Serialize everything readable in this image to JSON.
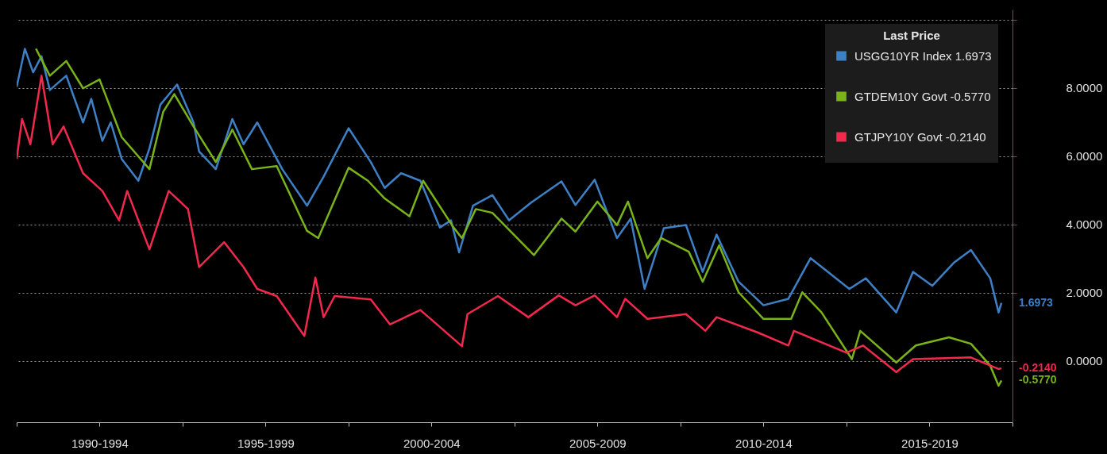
{
  "chart_data": {
    "type": "line",
    "legend_title": "Last Price",
    "legend": "top right",
    "grid": true,
    "xlim": [
      "1990-01-01",
      "2020-01-01"
    ],
    "xticks": [
      {
        "value": "1990-01-01",
        "label": null
      },
      {
        "value": "1992-07-01",
        "label": "1990-1994"
      },
      {
        "value": "1995-01-01",
        "label": null
      },
      {
        "value": "1997-07-01",
        "label": "1995-1999"
      },
      {
        "value": "2000-01-01",
        "label": null
      },
      {
        "value": "2002-07-01",
        "label": "2000-2004"
      },
      {
        "value": "2005-01-01",
        "label": null
      },
      {
        "value": "2007-07-01",
        "label": "2005-2009"
      },
      {
        "value": "2010-01-01",
        "label": null
      },
      {
        "value": "2012-07-01",
        "label": "2010-2014"
      },
      {
        "value": "2015-01-01",
        "label": null
      },
      {
        "value": "2017-07-01",
        "label": "2015-2019"
      },
      {
        "value": "2020-01-01",
        "label": null
      }
    ],
    "ylim": [
      -1.8,
      10.3
    ],
    "yticks": [
      {
        "value": 0,
        "label": "0.0000"
      },
      {
        "value": 2,
        "label": "2.0000"
      },
      {
        "value": 4,
        "label": "4.0000"
      },
      {
        "value": 6,
        "label": "6.0000"
      },
      {
        "value": 8,
        "label": "8.0000"
      },
      {
        "value": 10,
        "label": null
      }
    ],
    "series": [
      {
        "name": "USGG10YR Index 1.6973",
        "color": "#3d80c6",
        "x": [
          "1990-01",
          "1990-04",
          "1990-07",
          "1990-10",
          "1991-01",
          "1991-07",
          "1992-01",
          "1992-04",
          "1992-08",
          "1992-11",
          "1993-03",
          "1993-09",
          "1994-01",
          "1994-05",
          "1994-11",
          "1995-05",
          "1995-07",
          "1996-01",
          "1996-07",
          "1996-11",
          "1997-04",
          "1998-01",
          "1998-10",
          "1999-04",
          "2000-01",
          "2000-09",
          "2001-02",
          "2001-08",
          "2002-03",
          "2002-10",
          "2003-02",
          "2003-05",
          "2003-10",
          "2004-05",
          "2004-11",
          "2005-07",
          "2006-06",
          "2006-11",
          "2007-06",
          "2008-02",
          "2008-07",
          "2008-12",
          "2009-07",
          "2010-03",
          "2010-09",
          "2011-02",
          "2011-10",
          "2012-07",
          "2013-04",
          "2013-12",
          "2015-02",
          "2015-08",
          "2016-07",
          "2017-01",
          "2017-08",
          "2018-04",
          "2018-10",
          "2019-05",
          "2019-08",
          "2019-09"
        ],
        "values": [
          8.03,
          9.15,
          8.46,
          8.93,
          7.94,
          8.36,
          6.99,
          7.68,
          6.45,
          6.99,
          5.92,
          5.28,
          6.23,
          7.51,
          8.1,
          6.99,
          6.14,
          5.62,
          7.09,
          6.35,
          6.99,
          5.62,
          4.55,
          5.4,
          6.82,
          5.83,
          5.07,
          5.5,
          5.28,
          3.91,
          4.12,
          3.18,
          4.55,
          4.86,
          4.12,
          4.64,
          5.26,
          4.57,
          5.31,
          3.6,
          4.17,
          2.11,
          3.89,
          3.98,
          2.61,
          3.7,
          2.32,
          1.63,
          1.82,
          3.01,
          2.11,
          2.42,
          1.42,
          2.61,
          2.2,
          2.89,
          3.25,
          2.42,
          1.42,
          1.6973
        ]
      },
      {
        "name": "GTDEM10Y Govt -0.5770",
        "color": "#7ab317",
        "x": [
          "1990-08",
          "1991-01",
          "1991-07",
          "1992-01",
          "1992-07",
          "1993-03",
          "1994-01",
          "1994-06",
          "1994-10",
          "1995-05",
          "1996-01",
          "1996-07",
          "1997-02",
          "1997-11",
          "1998-10",
          "1999-02",
          "2000-01",
          "2000-08",
          "2001-02",
          "2001-11",
          "2002-04",
          "2003-03",
          "2003-06",
          "2003-11",
          "2004-05",
          "2005-08",
          "2006-06",
          "2006-11",
          "2007-07",
          "2008-02",
          "2008-06",
          "2009-01",
          "2009-06",
          "2010-04",
          "2010-09",
          "2011-03",
          "2011-10",
          "2012-07",
          "2013-05",
          "2013-09",
          "2014-04",
          "2015-03",
          "2015-06",
          "2016-07",
          "2017-02",
          "2018-02",
          "2018-10",
          "2019-05",
          "2019-08",
          "2019-09"
        ],
        "values": [
          9.15,
          8.36,
          8.79,
          7.99,
          8.25,
          6.56,
          5.62,
          7.3,
          7.82,
          6.87,
          5.83,
          6.78,
          5.62,
          5.71,
          3.81,
          3.6,
          5.66,
          5.28,
          4.76,
          4.24,
          5.28,
          3.91,
          3.6,
          4.45,
          4.34,
          3.1,
          4.17,
          3.79,
          4.67,
          3.98,
          4.67,
          3.01,
          3.6,
          3.2,
          2.32,
          3.39,
          2.01,
          1.23,
          1.23,
          2.01,
          1.42,
          0.05,
          0.88,
          -0.05,
          0.45,
          0.69,
          0.5,
          -0.14,
          -0.73,
          -0.577
        ]
      },
      {
        "name": "GTJPY10Y Govt -0.2140",
        "color": "#f2284c",
        "x": [
          "1990-01",
          "1990-03",
          "1990-06",
          "1990-10",
          "1991-02",
          "1991-06",
          "1992-01",
          "1992-08",
          "1993-02",
          "1993-05",
          "1994-01",
          "1994-08",
          "1995-03",
          "1995-07",
          "1996-04",
          "1996-11",
          "1997-04",
          "1997-11",
          "1998-09",
          "1999-01",
          "1999-04",
          "1999-08",
          "2000-09",
          "2001-04",
          "2002-03",
          "2003-06",
          "2003-08",
          "2004-07",
          "2005-06",
          "2006-05",
          "2006-11",
          "2007-06",
          "2008-02",
          "2008-05",
          "2009-01",
          "2010-03",
          "2010-10",
          "2011-02",
          "2012-05",
          "2013-04",
          "2013-06",
          "2015-01",
          "2015-07",
          "2016-07",
          "2017-01",
          "2018-10",
          "2019-08",
          "2019-09"
        ],
        "values": [
          5.92,
          7.09,
          6.35,
          8.36,
          6.35,
          6.87,
          5.5,
          4.98,
          4.12,
          4.98,
          3.27,
          4.98,
          4.45,
          2.75,
          3.48,
          2.75,
          2.11,
          1.9,
          0.73,
          2.44,
          1.28,
          1.9,
          1.8,
          1.07,
          1.49,
          0.43,
          1.37,
          1.9,
          1.28,
          1.92,
          1.63,
          1.92,
          1.28,
          1.82,
          1.23,
          1.37,
          0.88,
          1.28,
          0.83,
          0.45,
          0.88,
          0.24,
          0.45,
          -0.33,
          0.05,
          0.1,
          -0.24,
          -0.214
        ]
      }
    ],
    "annotations": [
      {
        "text": "1.6973",
        "x": "2019-09",
        "y": 1.6973
      },
      {
        "text": "-0.5770",
        "x": "2019-09",
        "y": -0.577
      },
      {
        "text": "-0.2140",
        "x": "2019-09",
        "y": -0.214
      }
    ]
  }
}
